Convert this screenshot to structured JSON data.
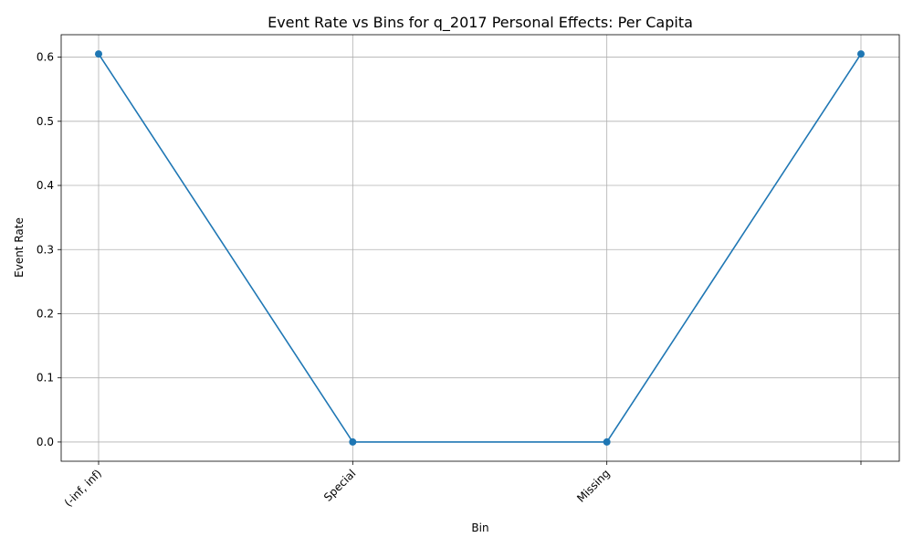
{
  "chart_data": {
    "type": "line",
    "title": "Event Rate vs Bins for q_2017 Personal Effects: Per Capita",
    "xlabel": "Bin",
    "ylabel": "Event Rate",
    "categories": [
      "(-inf, inf)",
      "Special",
      "Missing",
      ""
    ],
    "series": [
      {
        "values": [
          0.605,
          0.0,
          0.0,
          0.605
        ]
      }
    ],
    "ylim": [
      -0.03,
      0.635
    ],
    "yticks": [
      0.0,
      0.1,
      0.2,
      0.3,
      0.4,
      0.5,
      0.6
    ],
    "ytick_labels": [
      "0.0",
      "0.1",
      "0.2",
      "0.3",
      "0.4",
      "0.5",
      "0.6"
    ],
    "grid": true,
    "line_color": "#1f77b4",
    "marker": "circle"
  }
}
